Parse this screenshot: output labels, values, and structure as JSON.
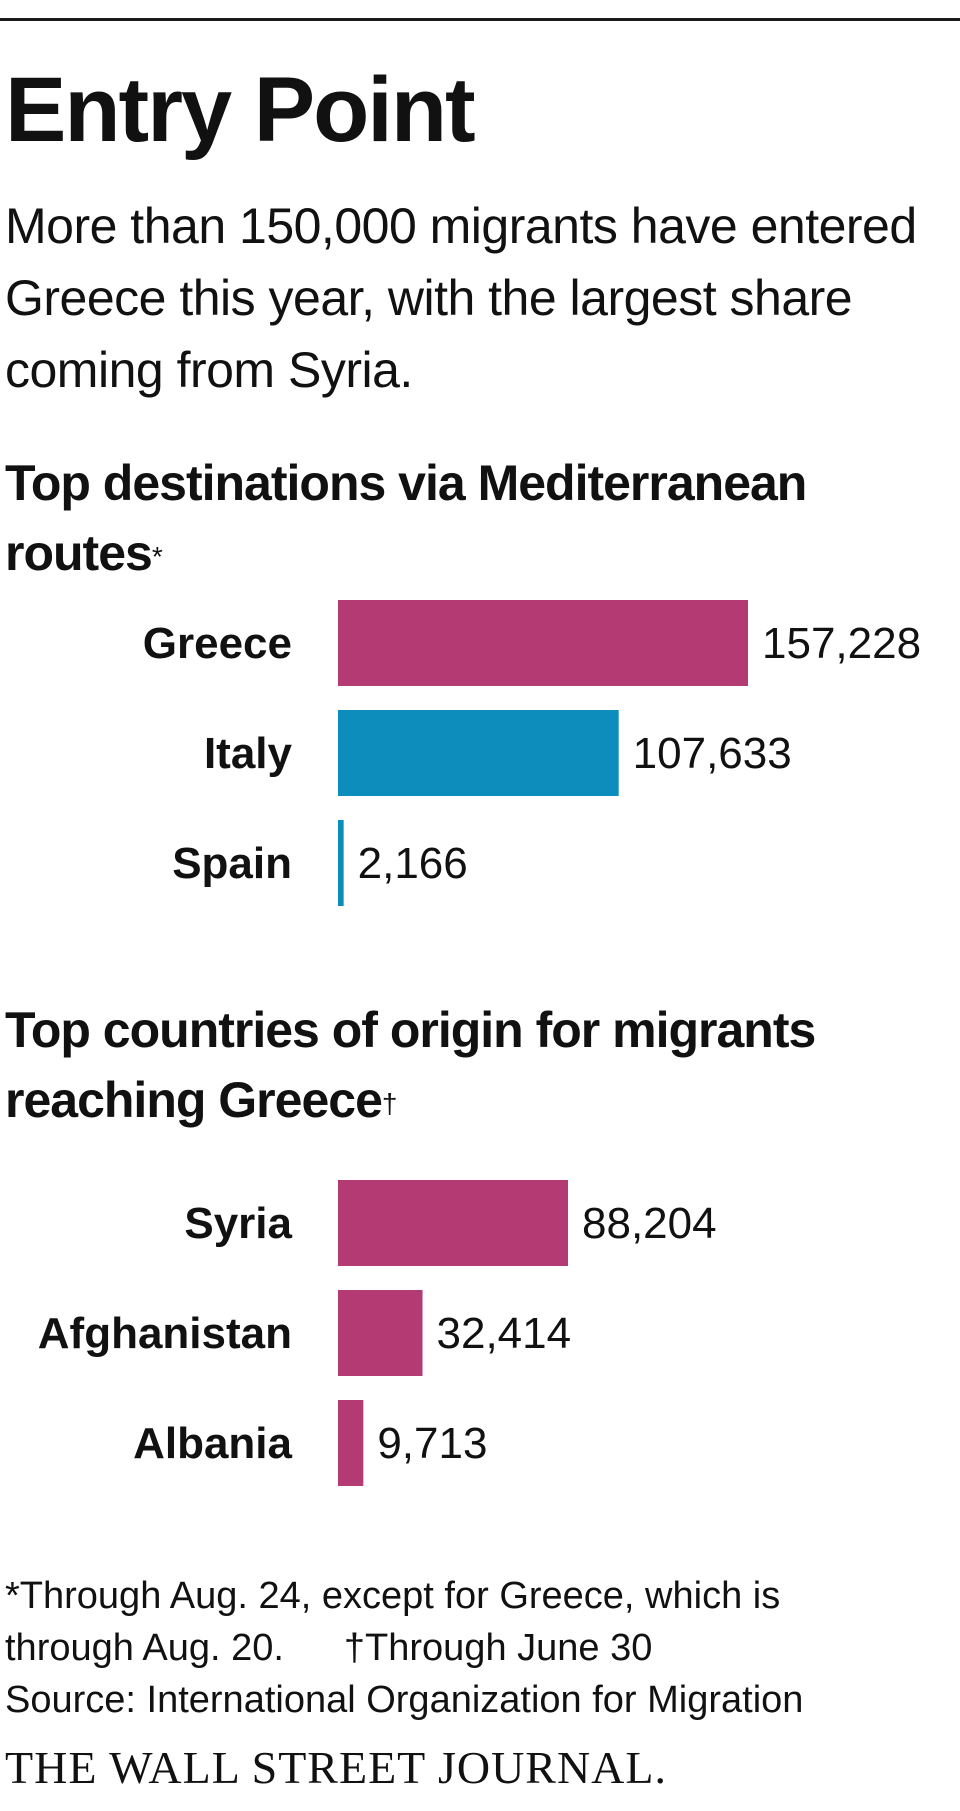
{
  "header": {
    "title": "Entry Point",
    "subtitle": "More than 150,000 migrants have entered Greece this year, with the largest share coming from Syria."
  },
  "colors": {
    "magenta": "#b33a73",
    "blue": "#0c8dbb",
    "text": "#111111"
  },
  "chart_data": [
    {
      "type": "bar",
      "orientation": "horizontal",
      "title": "Top destinations via Mediterranean routes",
      "title_marker": "*",
      "categories": [
        "Greece",
        "Italy",
        "Spain"
      ],
      "values": [
        157228,
        107633,
        2166
      ],
      "value_labels": [
        "157,228",
        "107,633",
        "2,166"
      ],
      "bar_colors": [
        "#b33a73",
        "#0c8dbb",
        "#0c8dbb"
      ],
      "xlim": [
        0,
        157228
      ],
      "grid": false,
      "legend": "none"
    },
    {
      "type": "bar",
      "orientation": "horizontal",
      "title": "Top countries of origin for migrants reaching Greece",
      "title_marker": "†",
      "categories": [
        "Syria",
        "Afghanistan",
        "Albania"
      ],
      "values": [
        88204,
        32414,
        9713
      ],
      "value_labels": [
        "88,204",
        "32,414",
        "9,713"
      ],
      "bar_colors": [
        "#b33a73",
        "#b33a73",
        "#b33a73"
      ],
      "xlim": [
        0,
        157228
      ],
      "grid": false,
      "legend": "none"
    }
  ],
  "notes": {
    "note1": "*Through Aug. 24, except for Greece, which is",
    "note2a": "through Aug. 20.",
    "note2b": "†Through June 30",
    "source": "Source: International Organization for Migration"
  },
  "brand": "THE WALL STREET JOURNAL."
}
